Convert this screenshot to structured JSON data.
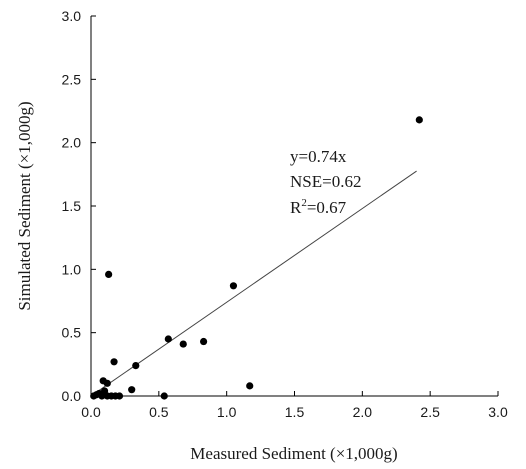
{
  "chart_data": {
    "type": "scatter",
    "title": "",
    "xlabel": "Measured Sediment (×1,000g)",
    "ylabel": "Simulated Sediment (×1,000g)",
    "xlim": [
      0,
      3
    ],
    "ylim": [
      0,
      3
    ],
    "xticks": [
      "0.0",
      "0.5",
      "1.0",
      "1.5",
      "2.0",
      "2.5",
      "3.0"
    ],
    "yticks": [
      "0.0",
      "0.5",
      "1.0",
      "1.5",
      "2.0",
      "2.5",
      "3.0"
    ],
    "grid": false,
    "marker_color": "#000000",
    "line_color": "#444444",
    "series": [
      {
        "points": [
          {
            "x": 0.02,
            "y": 0.0
          },
          {
            "x": 0.04,
            "y": 0.01
          },
          {
            "x": 0.06,
            "y": 0.02
          },
          {
            "x": 0.08,
            "y": 0.0
          },
          {
            "x": 0.09,
            "y": 0.12
          },
          {
            "x": 0.1,
            "y": 0.04
          },
          {
            "x": 0.12,
            "y": 0.1
          },
          {
            "x": 0.12,
            "y": 0.0
          },
          {
            "x": 0.13,
            "y": 0.96
          },
          {
            "x": 0.15,
            "y": 0.0
          },
          {
            "x": 0.17,
            "y": 0.27
          },
          {
            "x": 0.18,
            "y": 0.0
          },
          {
            "x": 0.21,
            "y": 0.0
          },
          {
            "x": 0.3,
            "y": 0.05
          },
          {
            "x": 0.33,
            "y": 0.24
          },
          {
            "x": 0.54,
            "y": 0.0
          },
          {
            "x": 0.57,
            "y": 0.45
          },
          {
            "x": 0.68,
            "y": 0.41
          },
          {
            "x": 0.83,
            "y": 0.43
          },
          {
            "x": 1.05,
            "y": 0.87
          },
          {
            "x": 1.17,
            "y": 0.08
          },
          {
            "x": 2.42,
            "y": 2.18
          }
        ]
      }
    ],
    "trendline": {
      "slope": 0.74,
      "x_start": 0.0,
      "x_end": 2.4
    },
    "annotations": {
      "equation": "y=0.74x",
      "nse": "NSE=0.62",
      "r2_prefix": "R",
      "r2_sup": "2",
      "r2_value": "=0.67"
    }
  }
}
